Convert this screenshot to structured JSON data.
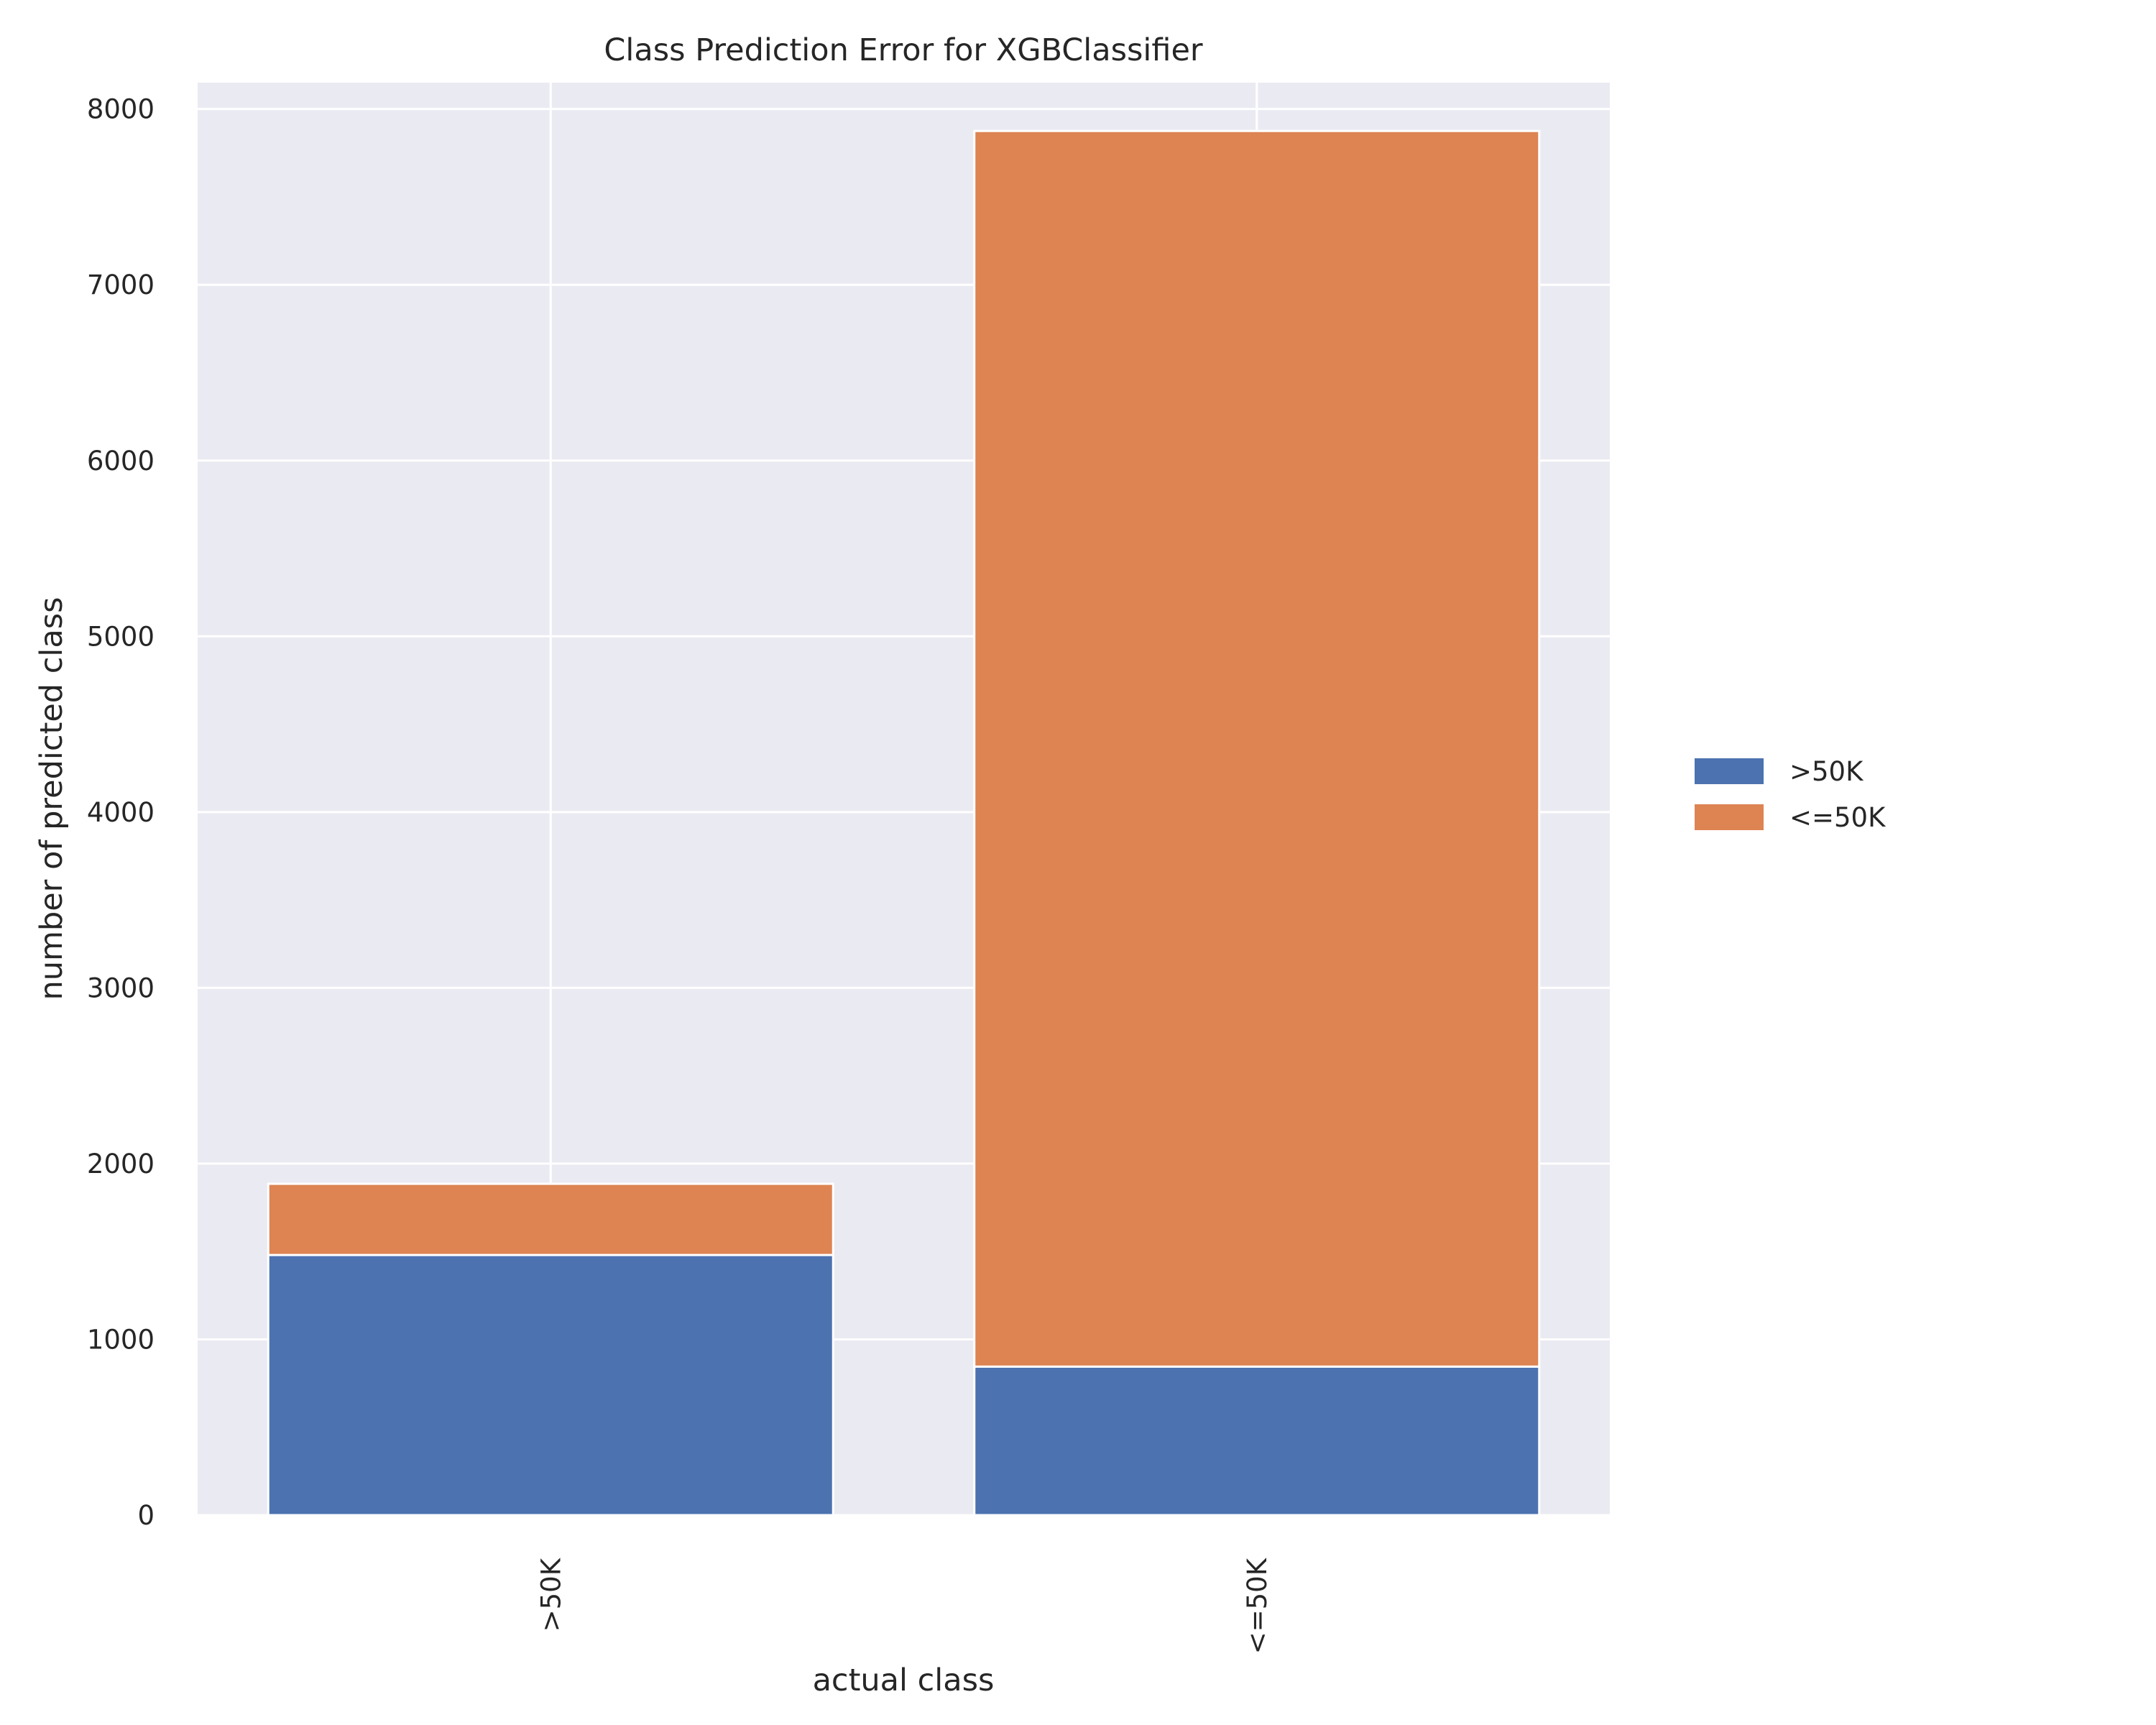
{
  "chart_data": {
    "type": "bar",
    "stacked": true,
    "title": "Class Prediction Error for XGBClassifier",
    "xlabel": "actual class",
    "ylabel": "number of predicted class",
    "categories": [
      ">50K",
      "<=50K"
    ],
    "series": [
      {
        "name": ">50K",
        "values": [
          1480,
          845
        ],
        "color": "#4c72b0"
      },
      {
        "name": "<=50K",
        "values": [
          405,
          7030
        ],
        "color": "#dd8452"
      }
    ],
    "ylim": [
      0,
      8150
    ],
    "yticks": [
      "0",
      "1000",
      "2000",
      "3000",
      "4000",
      "5000",
      "6000",
      "7000",
      "8000"
    ],
    "grid": true,
    "legend": "right",
    "background": "#eaeaf2"
  }
}
